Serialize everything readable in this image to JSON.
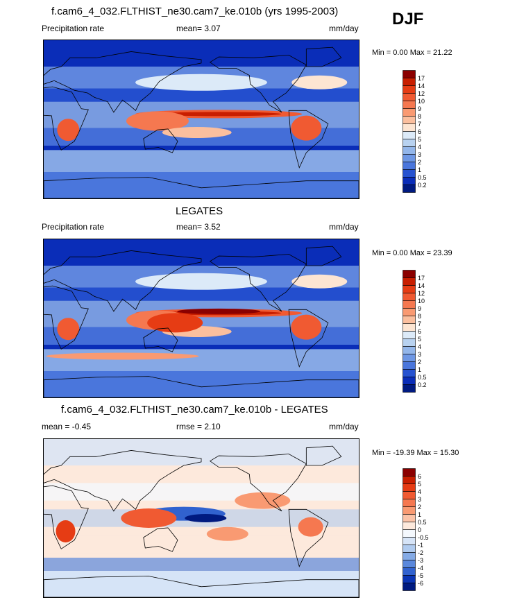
{
  "season": "DJF",
  "panels": [
    {
      "title": "f.cam6_4_032.FLTHIST_ne30.cam7_ke.010b (yrs 1995-2003)",
      "left_label": "Precipitation rate",
      "center_label": "mean=   3.07",
      "units": "mm/day",
      "minmax": "Min =   0.00 Max =  21.22",
      "levels": [
        "17",
        "14",
        "12",
        "10",
        "9",
        "8",
        "7",
        "6",
        "5",
        "4",
        "3",
        "2",
        "1",
        "0.5",
        "0.2"
      ],
      "colors": [
        "#8b0000",
        "#c81e00",
        "#e63c14",
        "#f05a32",
        "#f57850",
        "#f99a72",
        "#fbbf9e",
        "#fde5d2",
        "#dceaf8",
        "#b8d2f0",
        "#93b6ea",
        "#6e97e4",
        "#4a76dc",
        "#2652d0",
        "#0a2db8",
        "#001a80"
      ]
    },
    {
      "title": "LEGATES",
      "left_label": "Precipitation rate",
      "center_label": "mean=   3.52",
      "units": "mm/day",
      "minmax": "Min =   0.00 Max =  23.39",
      "levels": [
        "17",
        "14",
        "12",
        "10",
        "9",
        "8",
        "7",
        "6",
        "5",
        "4",
        "3",
        "2",
        "1",
        "0.5",
        "0.2"
      ],
      "colors": [
        "#8b0000",
        "#c81e00",
        "#e63c14",
        "#f05a32",
        "#f57850",
        "#f99a72",
        "#fbbf9e",
        "#fde5d2",
        "#dceaf8",
        "#b8d2f0",
        "#93b6ea",
        "#6e97e4",
        "#4a76dc",
        "#2652d0",
        "#0a2db8",
        "#001a80"
      ]
    },
    {
      "title": "f.cam6_4_032.FLTHIST_ne30.cam7_ke.010b - LEGATES",
      "left_label": "mean =  -0.45",
      "center_label": "rmse =   2.10",
      "units": "mm/day",
      "minmax": "Min = -19.39 Max =  15.30",
      "levels": [
        "6",
        "5",
        "4",
        "3",
        "2",
        "1",
        "0.5",
        "0",
        "-0.5",
        "-1",
        "-2",
        "-3",
        "-4",
        "-5",
        "-6"
      ],
      "colors": [
        "#8b0000",
        "#c81e00",
        "#e63c14",
        "#f05a32",
        "#f57850",
        "#f99a72",
        "#fbc3a8",
        "#fde9dc",
        "#f4f8fd",
        "#d6e4f7",
        "#b0cbef",
        "#85abe6",
        "#5a88dc",
        "#3162cf",
        "#0a34b4",
        "#001a80"
      ]
    }
  ]
}
